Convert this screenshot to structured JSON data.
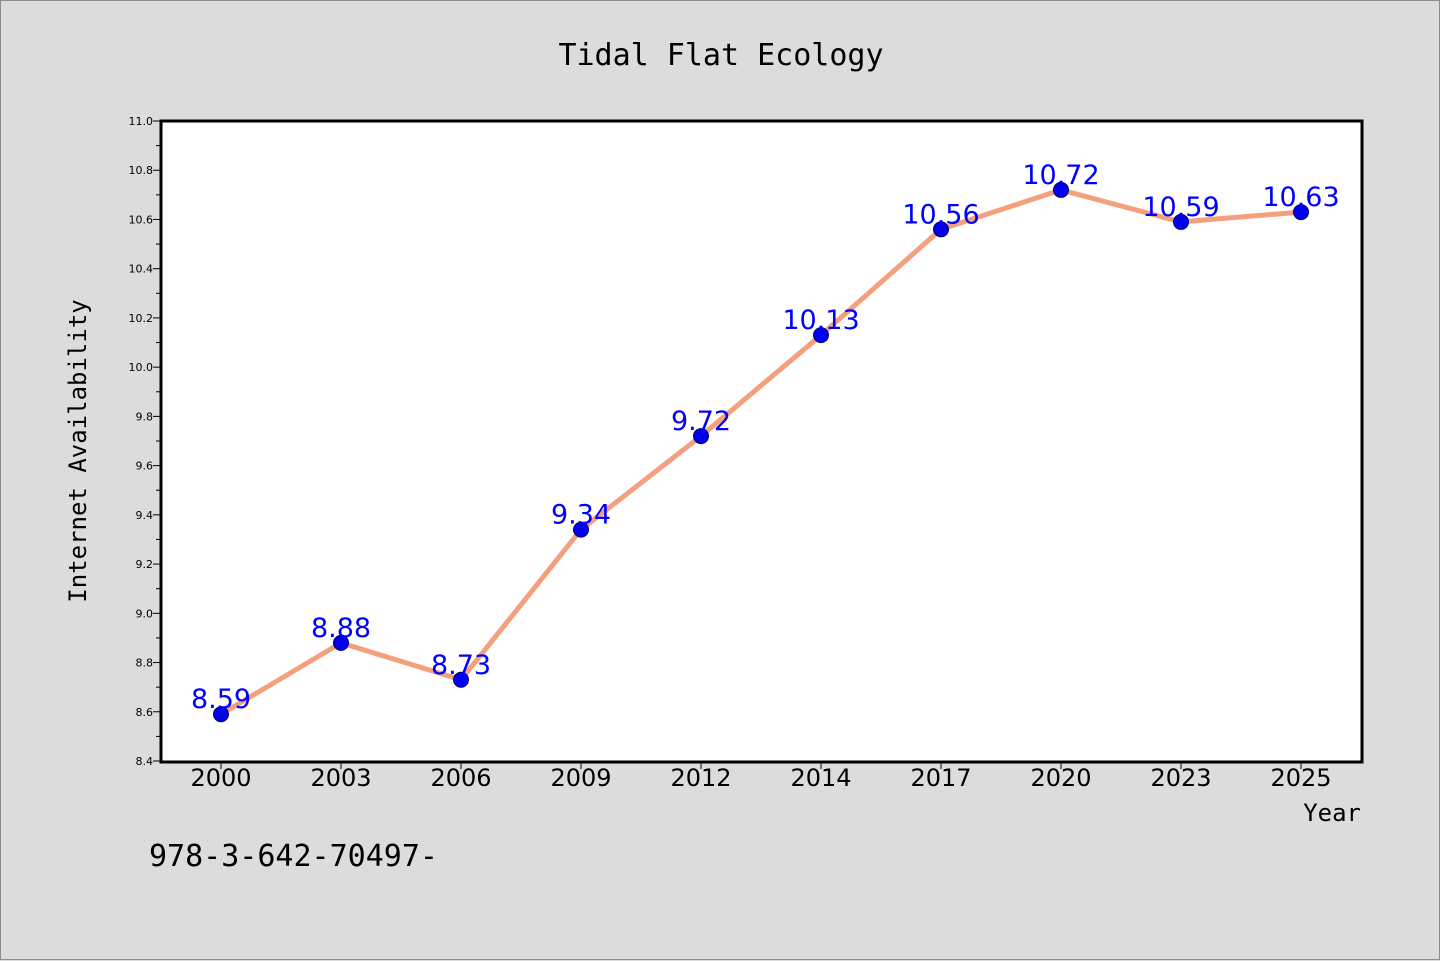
{
  "chart_data": {
    "type": "line",
    "title": "Tidal Flat Ecology",
    "xlabel": "Year",
    "ylabel": "Internet Availability",
    "categories": [
      "2000",
      "2003",
      "2006",
      "2009",
      "2012",
      "2014",
      "2017",
      "2020",
      "2023",
      "2025"
    ],
    "series": [
      {
        "values": [
          8.59,
          8.88,
          8.73,
          9.34,
          9.72,
          10.13,
          10.56,
          10.72,
          10.59,
          10.63
        ]
      }
    ],
    "data_labels": [
      "8.59",
      "8.88",
      "8.73",
      "9.34",
      "9.72",
      "10.13",
      "10.56",
      "10.72",
      "10.59",
      "10.63"
    ],
    "ylim": [
      8.4,
      11.0
    ],
    "yticks": [
      "8.4",
      "8.6",
      "8.8",
      "9.0",
      "9.2",
      "9.4",
      "9.6",
      "9.8",
      "10.0",
      "10.2",
      "10.4",
      "10.6",
      "10.8",
      "11.0"
    ],
    "grid": false,
    "legend": "none",
    "colors": {
      "line": "#f4a07e",
      "marker": "#0000ee",
      "marker_edge": "#000066",
      "data_label": "#0000ff",
      "plot_background": "#ffffff",
      "figure_background": "#dcdcdc"
    }
  },
  "footer": {
    "text": "978-3-642-70497-"
  }
}
